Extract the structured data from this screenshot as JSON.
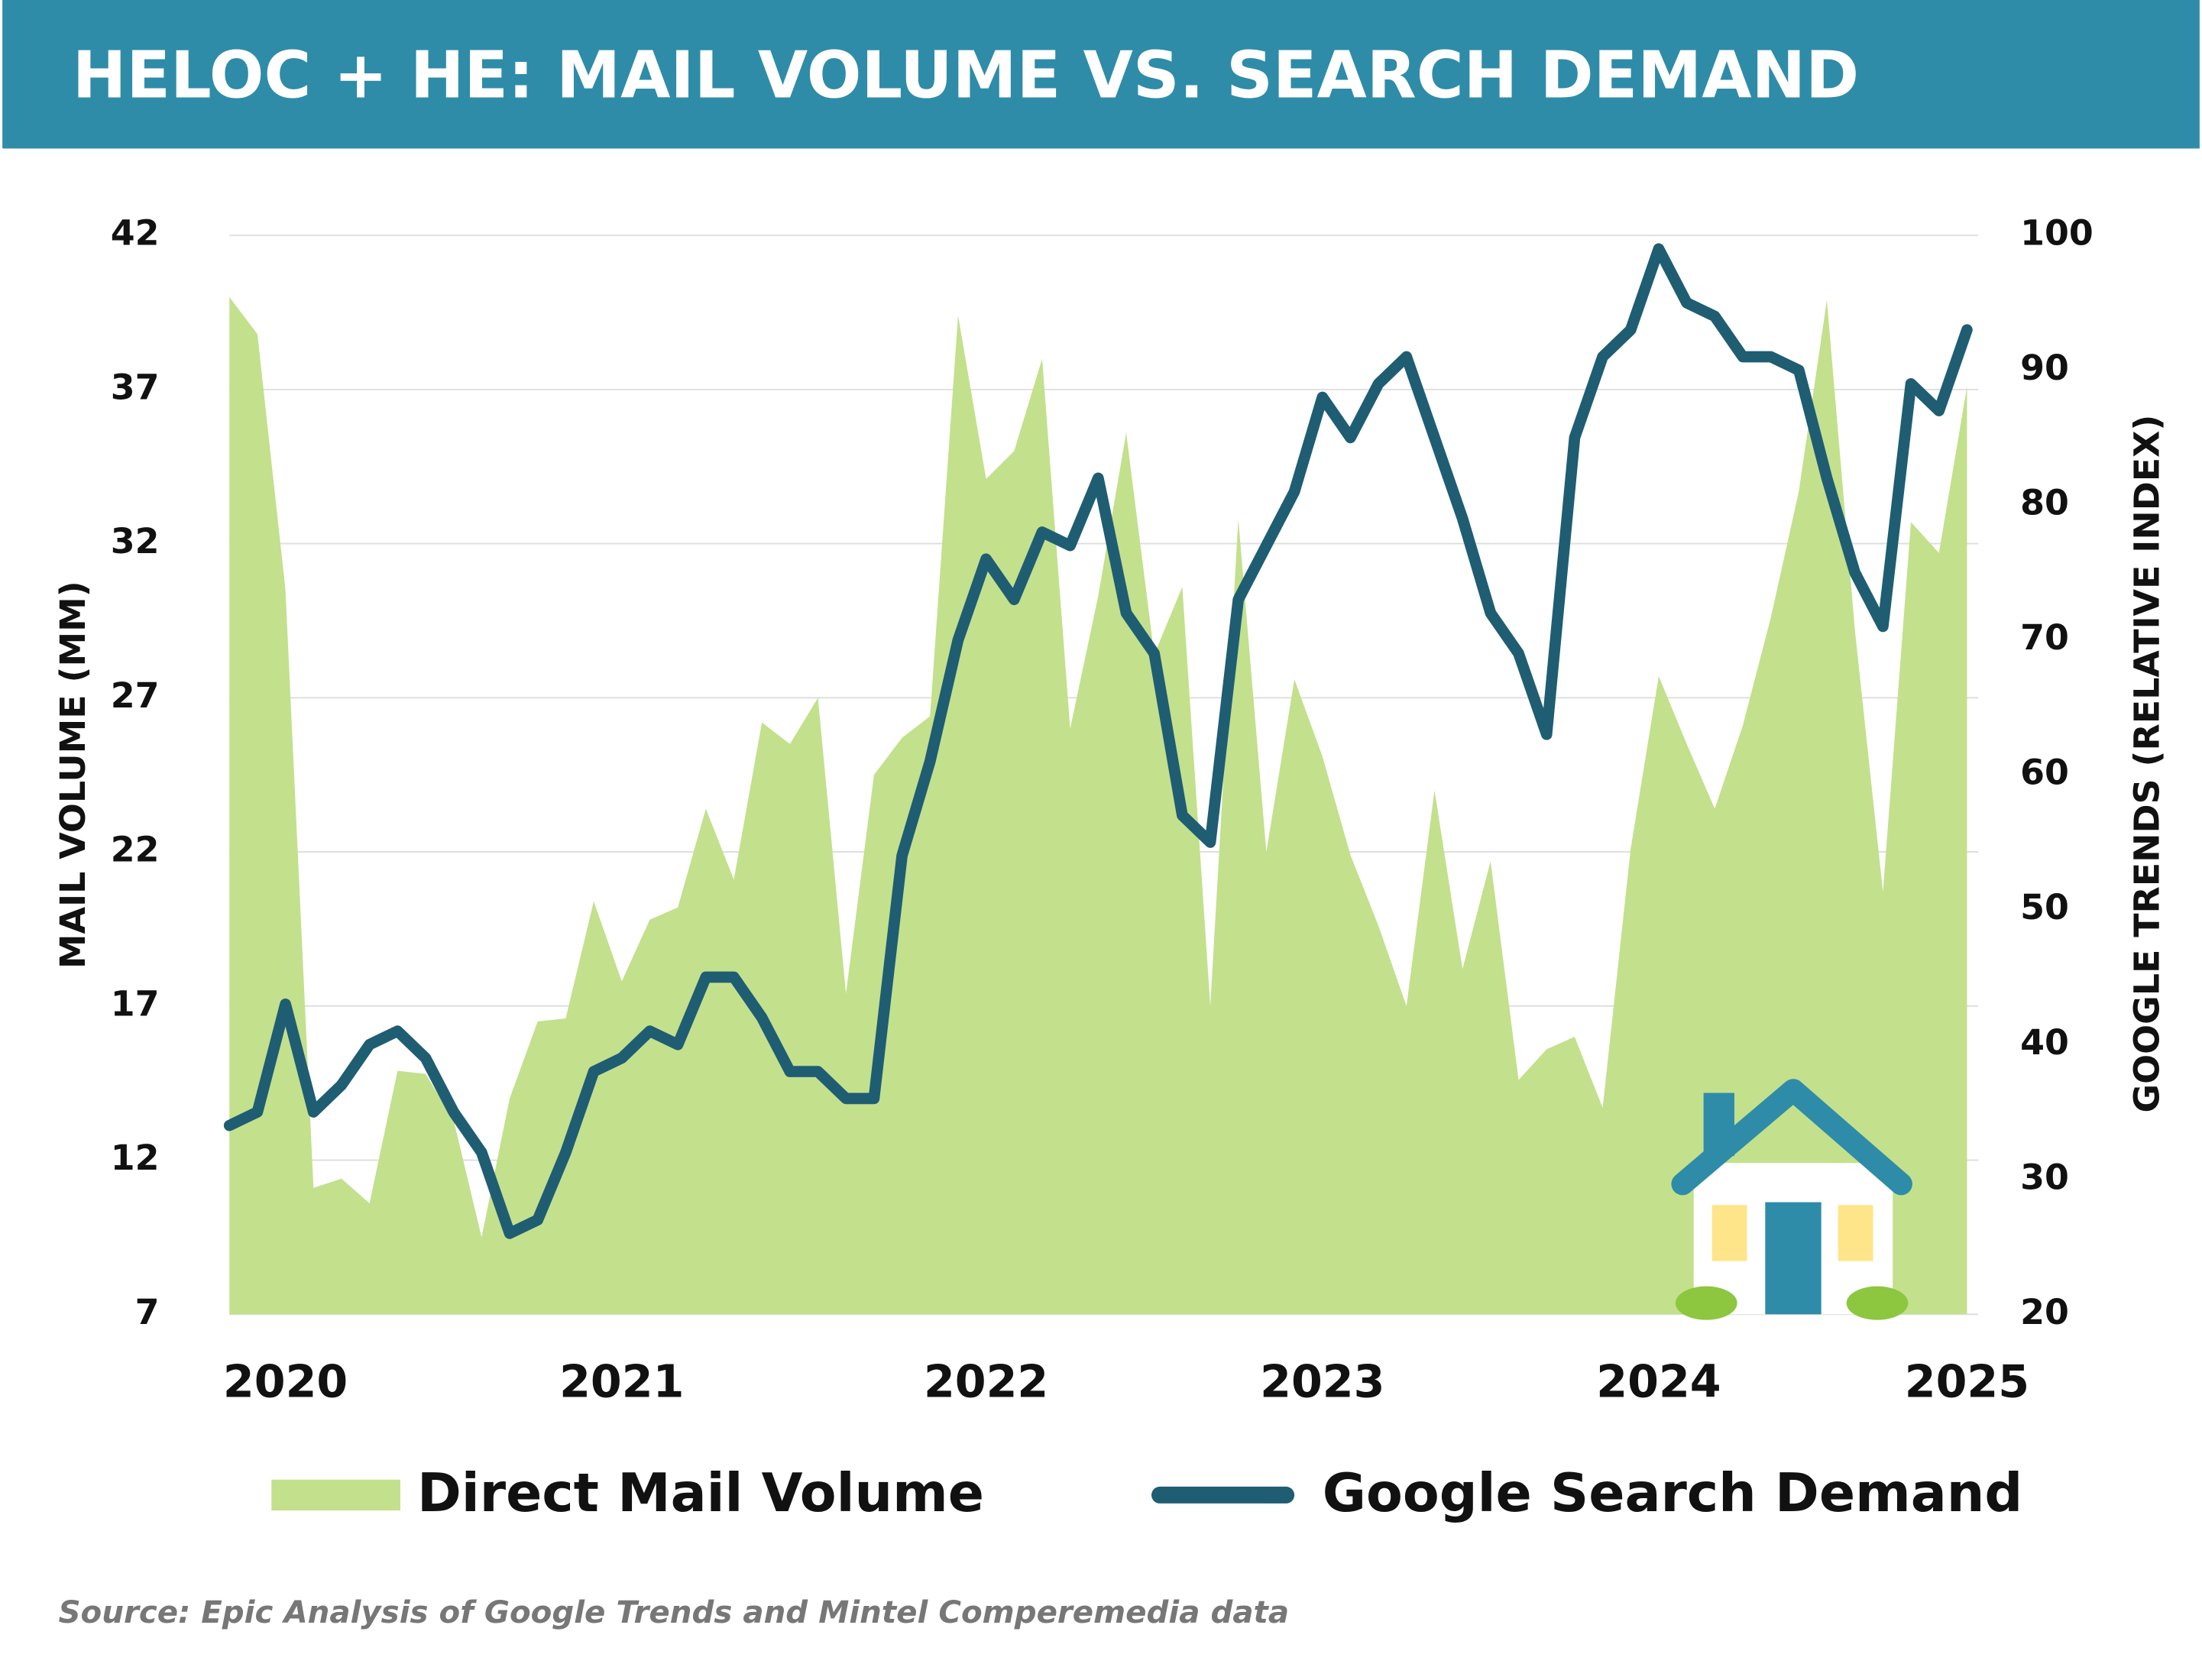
{
  "chart_data": {
    "type": "area-line",
    "title": "HELOC + HE: MAIL VOLUME VS. SEARCH DEMAND",
    "y_label": "MAIL VOLUME (MM)",
    "y2_label": "GOOGLE TRENDS (RELATIVE INDEX)",
    "source": "Source: Epic Analysis of Google Trends and Mintel Comperemedia data",
    "categories": [
      null,
      null,
      "2020",
      null,
      null,
      null,
      null,
      null,
      null,
      null,
      null,
      null,
      null,
      null,
      "2021",
      null,
      null,
      null,
      null,
      null,
      null,
      null,
      null,
      null,
      null,
      null,
      null,
      "2022",
      null,
      null,
      null,
      null,
      null,
      null,
      null,
      null,
      null,
      null,
      null,
      "2023",
      null,
      null,
      null,
      null,
      null,
      null,
      null,
      null,
      null,
      null,
      null,
      "2024",
      null,
      null,
      null,
      null,
      null,
      null,
      null,
      null,
      null,
      null,
      "2025"
    ],
    "ylim": [
      7,
      42
    ],
    "yticks": [
      7,
      12,
      17,
      22,
      27,
      32,
      37,
      42
    ],
    "y2lim": [
      20,
      100
    ],
    "y2ticks": [
      20,
      30,
      40,
      50,
      60,
      70,
      80,
      90,
      100
    ],
    "grid": true,
    "series": [
      {
        "name": "Direct Mail Volume",
        "type": "area",
        "color": "#c3e08c",
        "values": [
          40.0,
          38.8,
          30.5,
          11.1,
          11.4,
          10.6,
          14.9,
          14.8,
          13.3,
          9.5,
          14.0,
          16.5,
          16.6,
          20.4,
          17.8,
          19.8,
          20.2,
          23.4,
          21.1,
          26.2,
          25.5,
          27.0,
          17.4,
          24.5,
          25.7,
          26.4,
          39.4,
          34.1,
          35.0,
          38.0,
          26.0,
          30.3,
          35.6,
          28.4,
          30.6,
          17.0,
          32.8,
          22.0,
          27.6,
          25.1,
          21.9,
          19.6,
          17.0,
          24.0,
          18.2,
          21.7,
          14.6,
          15.6,
          16.0,
          13.7,
          22.1,
          27.7,
          25.5,
          23.4,
          26.1,
          29.6,
          33.7,
          39.9,
          29.2,
          20.7,
          32.7,
          31.7,
          37.1
        ]
      },
      {
        "name": "Google Search Demand",
        "type": "line",
        "axis": "y2",
        "color": "#1f5d73",
        "values": [
          34,
          35,
          43,
          35,
          37,
          40,
          41,
          39,
          35,
          32,
          26,
          27,
          32,
          38,
          39,
          41,
          40,
          45,
          45,
          42,
          38,
          38,
          36,
          36,
          54,
          61,
          70,
          76,
          73,
          78,
          77,
          82,
          72,
          69,
          57,
          55,
          73,
          77,
          81,
          88,
          85,
          89,
          91,
          85,
          79,
          72,
          69,
          63,
          85,
          91,
          93,
          99,
          95,
          94,
          91,
          91,
          90,
          82,
          75,
          71,
          89,
          87,
          93
        ]
      }
    ]
  }
}
